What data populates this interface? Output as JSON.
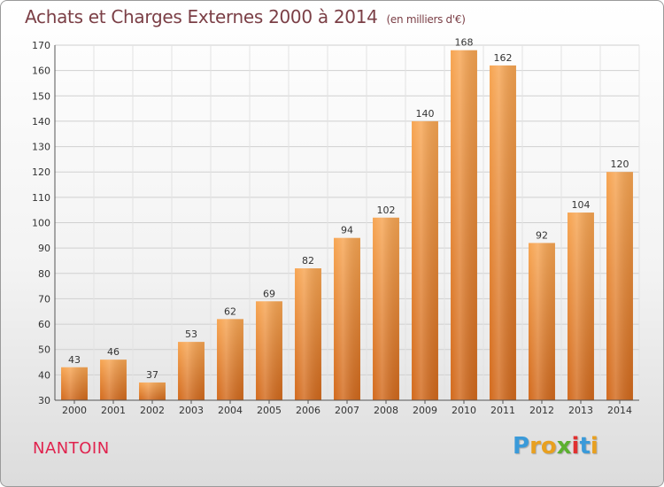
{
  "header": {
    "title": "Achats et Charges Externes 2000 à 2014",
    "unit": "(en milliers d'€)"
  },
  "footer": {
    "commune": "NANTOIN",
    "logo_letters": [
      "P",
      "r",
      "o",
      "x",
      "i",
      "t",
      "i"
    ],
    "logo_colors": [
      "#3a9ad9",
      "#e8a020",
      "#e8a020",
      "#5cb030",
      "#e03030",
      "#3a9ad9",
      "#e8a020"
    ]
  },
  "chart_data": {
    "type": "bar",
    "title": "Achats et Charges Externes 2000 à 2014",
    "subtitle": "(en milliers d'€)",
    "xlabel": "",
    "ylabel": "",
    "categories": [
      "2000",
      "2001",
      "2002",
      "2003",
      "2004",
      "2005",
      "2006",
      "2007",
      "2008",
      "2009",
      "2010",
      "2011",
      "2012",
      "2013",
      "2014"
    ],
    "values": [
      43,
      46,
      37,
      53,
      62,
      69,
      82,
      94,
      102,
      140,
      168,
      162,
      92,
      104,
      120
    ],
    "ylim": [
      30,
      170
    ],
    "yticks": [
      30,
      40,
      50,
      60,
      70,
      80,
      90,
      100,
      110,
      120,
      130,
      140,
      150,
      160,
      170
    ],
    "grid": true,
    "legend": "none",
    "bar_color_light": "#f7a552",
    "bar_color_dark": "#d2691c"
  }
}
